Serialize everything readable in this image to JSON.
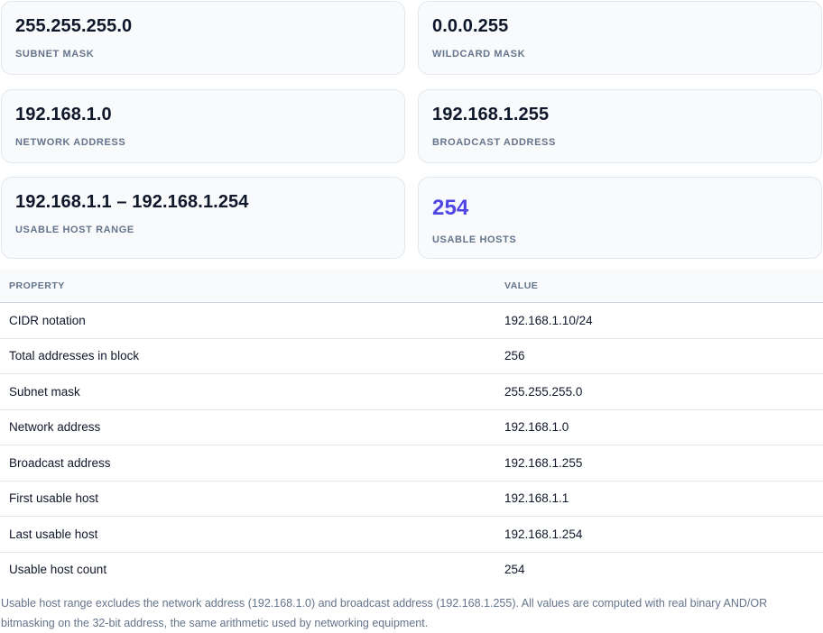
{
  "cards": {
    "subnet_mask": {
      "value": "255.255.255.0",
      "label": "SUBNET MASK"
    },
    "wildcard_mask": {
      "value": "0.0.0.255",
      "label": "WILDCARD MASK"
    },
    "network_address": {
      "value": "192.168.1.0",
      "label": "NETWORK ADDRESS"
    },
    "broadcast_address": {
      "value": "192.168.1.255",
      "label": "BROADCAST ADDRESS"
    },
    "usable_host_range": {
      "value": "192.168.1.1 – 192.168.1.254",
      "label": "USABLE HOST RANGE"
    },
    "usable_hosts": {
      "value": "254",
      "label": "USABLE HOSTS"
    }
  },
  "colors": {
    "accent": "#4f46e5",
    "card_bg": "#f8fafc",
    "muted_text": "#64748b"
  },
  "table": {
    "headers": [
      "PROPERTY",
      "VALUE"
    ],
    "rows": [
      [
        "CIDR notation",
        "192.168.1.10/24"
      ],
      [
        "Total addresses in block",
        "256"
      ],
      [
        "Subnet mask",
        "255.255.255.0"
      ],
      [
        "Network address",
        "192.168.1.0"
      ],
      [
        "Broadcast address",
        "192.168.1.255"
      ],
      [
        "First usable host",
        "192.168.1.1"
      ],
      [
        "Last usable host",
        "192.168.1.254"
      ],
      [
        "Usable host count",
        "254"
      ]
    ]
  },
  "footnote": "Usable host range excludes the network address (192.168.1.0) and broadcast address (192.168.1.255). All values are computed with real binary AND/OR bitmasking on the 32-bit address, the same arithmetic used by networking equipment."
}
